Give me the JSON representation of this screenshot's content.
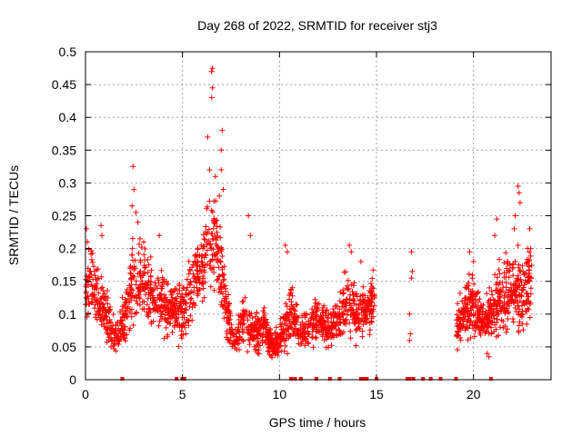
{
  "chart_data": {
    "type": "scatter",
    "title": "Day 268 of 2022, SRMTID for receiver stj3",
    "xlabel": "GPS time / hours",
    "ylabel": "SRMTID / TECUs",
    "xlim": [
      0,
      24
    ],
    "ylim": [
      0,
      0.5
    ],
    "x_ticks": [
      0,
      5,
      10,
      15,
      20
    ],
    "x_tick_labels": [
      "0",
      "5",
      "10",
      "15",
      "20"
    ],
    "y_ticks": [
      0,
      0.05,
      0.1,
      0.15,
      0.2,
      0.25,
      0.3,
      0.35,
      0.4,
      0.45,
      0.5
    ],
    "y_tick_labels": [
      "0",
      "0.05",
      "0.1",
      "0.15",
      "0.2",
      "0.25",
      "0.3",
      "0.35",
      "0.4",
      "0.45",
      "0.5"
    ],
    "grid": true,
    "marker": "+",
    "marker_color": "#ff0000",
    "series": [
      {
        "name": "SRMTID",
        "profile": [
          {
            "x": 0.0,
            "base": 0.13,
            "spread": 0.05
          },
          {
            "x": 0.3,
            "base": 0.16,
            "spread": 0.06
          },
          {
            "x": 0.6,
            "base": 0.12,
            "spread": 0.05
          },
          {
            "x": 1.0,
            "base": 0.1,
            "spread": 0.05
          },
          {
            "x": 1.5,
            "base": 0.07,
            "spread": 0.03
          },
          {
            "x": 2.0,
            "base": 0.09,
            "spread": 0.04
          },
          {
            "x": 2.5,
            "base": 0.16,
            "spread": 0.07
          },
          {
            "x": 3.0,
            "base": 0.15,
            "spread": 0.05
          },
          {
            "x": 3.5,
            "base": 0.13,
            "spread": 0.05
          },
          {
            "x": 4.0,
            "base": 0.12,
            "spread": 0.05
          },
          {
            "x": 4.5,
            "base": 0.11,
            "spread": 0.04
          },
          {
            "x": 5.0,
            "base": 0.1,
            "spread": 0.04
          },
          {
            "x": 5.5,
            "base": 0.14,
            "spread": 0.05
          },
          {
            "x": 6.0,
            "base": 0.17,
            "spread": 0.06
          },
          {
            "x": 6.5,
            "base": 0.22,
            "spread": 0.09
          },
          {
            "x": 6.9,
            "base": 0.18,
            "spread": 0.07
          },
          {
            "x": 7.3,
            "base": 0.1,
            "spread": 0.04
          },
          {
            "x": 7.7,
            "base": 0.06,
            "spread": 0.02
          },
          {
            "x": 8.2,
            "base": 0.09,
            "spread": 0.04
          },
          {
            "x": 8.7,
            "base": 0.07,
            "spread": 0.03
          },
          {
            "x": 9.2,
            "base": 0.08,
            "spread": 0.03
          },
          {
            "x": 9.7,
            "base": 0.05,
            "spread": 0.02
          },
          {
            "x": 10.2,
            "base": 0.07,
            "spread": 0.03
          },
          {
            "x": 10.6,
            "base": 0.11,
            "spread": 0.05
          },
          {
            "x": 11.0,
            "base": 0.07,
            "spread": 0.02
          },
          {
            "x": 11.5,
            "base": 0.08,
            "spread": 0.03
          },
          {
            "x": 12.0,
            "base": 0.09,
            "spread": 0.03
          },
          {
            "x": 12.5,
            "base": 0.08,
            "spread": 0.03
          },
          {
            "x": 13.0,
            "base": 0.09,
            "spread": 0.03
          },
          {
            "x": 13.5,
            "base": 0.12,
            "spread": 0.05
          },
          {
            "x": 14.0,
            "base": 0.1,
            "spread": 0.04
          },
          {
            "x": 14.5,
            "base": 0.11,
            "spread": 0.04
          },
          {
            "x": 14.9,
            "base": 0.13,
            "spread": 0.04
          }
        ],
        "late_profile": [
          {
            "x": 19.1,
            "base": 0.08,
            "spread": 0.03
          },
          {
            "x": 19.5,
            "base": 0.1,
            "spread": 0.04
          },
          {
            "x": 20.0,
            "base": 0.12,
            "spread": 0.05
          },
          {
            "x": 20.5,
            "base": 0.09,
            "spread": 0.03
          },
          {
            "x": 21.0,
            "base": 0.11,
            "spread": 0.04
          },
          {
            "x": 21.5,
            "base": 0.13,
            "spread": 0.06
          },
          {
            "x": 22.0,
            "base": 0.14,
            "spread": 0.05
          },
          {
            "x": 22.5,
            "base": 0.13,
            "spread": 0.06
          },
          {
            "x": 23.0,
            "base": 0.15,
            "spread": 0.05
          }
        ],
        "highlights": [
          [
            0.05,
            0.23
          ],
          [
            0.1,
            0.21
          ],
          [
            0.8,
            0.235
          ],
          [
            0.85,
            0.22
          ],
          [
            2.4,
            0.265
          ],
          [
            2.45,
            0.325
          ],
          [
            2.5,
            0.29
          ],
          [
            2.6,
            0.255
          ],
          [
            2.7,
            0.24
          ],
          [
            3.0,
            0.21
          ],
          [
            3.8,
            0.22
          ],
          [
            6.3,
            0.37
          ],
          [
            6.4,
            0.32
          ],
          [
            6.5,
            0.43
          ],
          [
            6.55,
            0.445
          ],
          [
            6.5,
            0.47
          ],
          [
            6.55,
            0.475
          ],
          [
            6.7,
            0.31
          ],
          [
            6.9,
            0.28
          ],
          [
            7.0,
            0.35
          ],
          [
            7.05,
            0.38
          ],
          [
            7.0,
            0.32
          ],
          [
            7.1,
            0.29
          ],
          [
            8.4,
            0.25
          ],
          [
            8.5,
            0.22
          ],
          [
            10.3,
            0.205
          ],
          [
            10.4,
            0.195
          ],
          [
            13.6,
            0.205
          ],
          [
            13.7,
            0.195
          ],
          [
            14.2,
            0.18
          ],
          [
            16.8,
            0.195
          ],
          [
            16.85,
            0.165
          ],
          [
            16.8,
            0.155
          ],
          [
            16.7,
            0.1
          ],
          [
            16.75,
            0.07
          ],
          [
            16.7,
            0.06
          ],
          [
            19.8,
            0.195
          ],
          [
            20.0,
            0.18
          ],
          [
            20.7,
            0.04
          ],
          [
            20.8,
            0.035
          ],
          [
            21.1,
            0.22
          ],
          [
            21.2,
            0.245
          ],
          [
            22.1,
            0.23
          ],
          [
            22.15,
            0.25
          ],
          [
            22.3,
            0.295
          ],
          [
            22.35,
            0.285
          ],
          [
            22.4,
            0.27
          ],
          [
            22.3,
            0.205
          ],
          [
            22.9,
            0.23
          ],
          [
            22.95,
            0.2
          ]
        ],
        "zero_markers_x": [
          1.9,
          4.7,
          5.0,
          5.1,
          10.6,
          10.8,
          11.1,
          11.9,
          12.6,
          13.1,
          14.2,
          14.3,
          14.4,
          14.5,
          15.0,
          16.6,
          16.7,
          16.9,
          17.4,
          17.8,
          18.3,
          19.1,
          20.9
        ]
      }
    ]
  }
}
